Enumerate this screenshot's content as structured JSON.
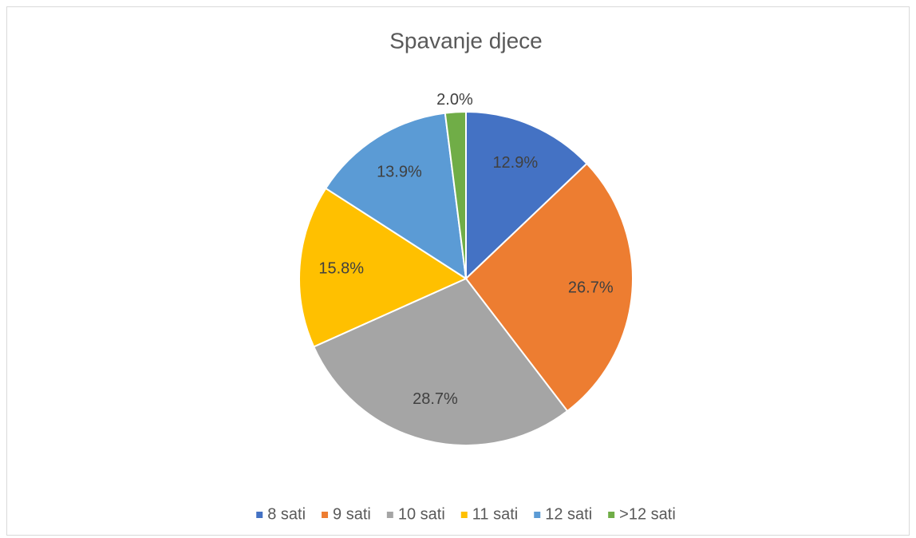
{
  "chart_data": {
    "type": "pie",
    "title": "Spavanje djece",
    "categories": [
      "8 sati",
      "9 sati",
      "10 sati",
      "11 sati",
      "12 sati",
      ">12 sati"
    ],
    "values": [
      12.9,
      26.7,
      28.7,
      15.8,
      13.9,
      2.0
    ],
    "value_labels": [
      "12.9%",
      "26.7%",
      "28.7%",
      "15.8%",
      "13.9%",
      "2.0%"
    ],
    "colors": [
      "#4472c4",
      "#ed7d31",
      "#a5a5a5",
      "#ffc000",
      "#5b9bd5",
      "#70ad47"
    ],
    "legend": "bottom"
  }
}
